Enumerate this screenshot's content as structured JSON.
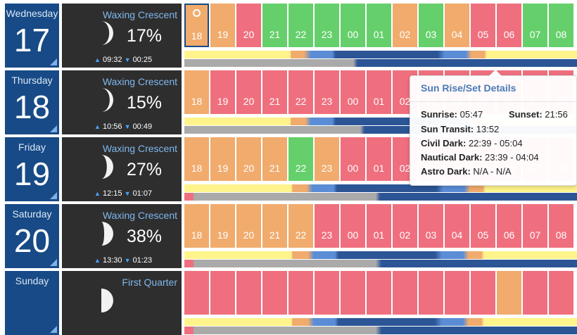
{
  "days": [
    {
      "weekday": "Wednesday",
      "date": "17",
      "moon": {
        "phase": "Waxing Crescent",
        "illumination": "17%",
        "rise": "09:32",
        "set": "00:25",
        "lit_fraction": 0.17
      },
      "hours": [
        {
          "label": "18",
          "color": "o",
          "current": true
        },
        {
          "label": "19",
          "color": "o"
        },
        {
          "label": "20",
          "color": "r"
        },
        {
          "label": "21",
          "color": "g"
        },
        {
          "label": "22",
          "color": "g"
        },
        {
          "label": "23",
          "color": "g"
        },
        {
          "label": "00",
          "color": "g"
        },
        {
          "label": "01",
          "color": "g"
        },
        {
          "label": "02",
          "color": "o"
        },
        {
          "label": "03",
          "color": "g"
        },
        {
          "label": "04",
          "color": "o"
        },
        {
          "label": "05",
          "color": "r"
        },
        {
          "label": "06",
          "color": "r"
        },
        {
          "label": "07",
          "color": "g"
        },
        {
          "label": "08",
          "color": "g"
        }
      ]
    },
    {
      "weekday": "Thursday",
      "date": "18",
      "moon": {
        "phase": "Waxing Crescent",
        "illumination": "15%",
        "rise": "10:56",
        "set": "00:49",
        "lit_fraction": 0.15
      },
      "hours": [
        {
          "label": "18",
          "color": "o"
        },
        {
          "label": "19",
          "color": "r"
        },
        {
          "label": "20",
          "color": "r"
        },
        {
          "label": "21",
          "color": "r"
        },
        {
          "label": "22",
          "color": "r"
        },
        {
          "label": "23",
          "color": "r"
        },
        {
          "label": "00",
          "color": "r"
        },
        {
          "label": "01",
          "color": "r"
        },
        {
          "label": "02",
          "color": "r"
        },
        {
          "label": "03",
          "color": "r"
        },
        {
          "label": "04",
          "color": "r"
        },
        {
          "label": "05",
          "color": "r"
        },
        {
          "label": "06",
          "color": "r"
        },
        {
          "label": "07",
          "color": "r"
        },
        {
          "label": "08",
          "color": "r"
        }
      ]
    },
    {
      "weekday": "Friday",
      "date": "19",
      "moon": {
        "phase": "Waxing Crescent",
        "illumination": "27%",
        "rise": "12:15",
        "set": "01:07",
        "lit_fraction": 0.27
      },
      "hours": [
        {
          "label": "18",
          "color": "o"
        },
        {
          "label": "19",
          "color": "o"
        },
        {
          "label": "20",
          "color": "o"
        },
        {
          "label": "21",
          "color": "o"
        },
        {
          "label": "22",
          "color": "g"
        },
        {
          "label": "23",
          "color": "o"
        },
        {
          "label": "00",
          "color": "r"
        },
        {
          "label": "01",
          "color": "r"
        },
        {
          "label": "02",
          "color": "r"
        },
        {
          "label": "03",
          "color": "r"
        },
        {
          "label": "04",
          "color": "r"
        },
        {
          "label": "05",
          "color": "r"
        },
        {
          "label": "06",
          "color": "r"
        },
        {
          "label": "07",
          "color": "r"
        },
        {
          "label": "08",
          "color": "r"
        }
      ]
    },
    {
      "weekday": "Saturday",
      "date": "20",
      "moon": {
        "phase": "Waxing Crescent",
        "illumination": "38%",
        "rise": "13:30",
        "set": "01:23",
        "lit_fraction": 0.38
      },
      "hours": [
        {
          "label": "18",
          "color": "o"
        },
        {
          "label": "19",
          "color": "o"
        },
        {
          "label": "20",
          "color": "o"
        },
        {
          "label": "21",
          "color": "o"
        },
        {
          "label": "22",
          "color": "o"
        },
        {
          "label": "23",
          "color": "r"
        },
        {
          "label": "00",
          "color": "r"
        },
        {
          "label": "01",
          "color": "r"
        },
        {
          "label": "02",
          "color": "r"
        },
        {
          "label": "03",
          "color": "r"
        },
        {
          "label": "04",
          "color": "r"
        },
        {
          "label": "05",
          "color": "r"
        },
        {
          "label": "06",
          "color": "r"
        },
        {
          "label": "07",
          "color": "r"
        },
        {
          "label": "08",
          "color": "r"
        }
      ]
    },
    {
      "weekday": "Sunday",
      "date": "",
      "moon": {
        "phase": "First Quarter",
        "illumination": "",
        "rise": "",
        "set": "",
        "lit_fraction": 0.5
      },
      "hours": [
        {
          "label": "",
          "color": "r"
        },
        {
          "label": "",
          "color": "r"
        },
        {
          "label": "",
          "color": "r"
        },
        {
          "label": "",
          "color": "r"
        },
        {
          "label": "",
          "color": "r"
        },
        {
          "label": "",
          "color": "r"
        },
        {
          "label": "",
          "color": "r"
        },
        {
          "label": "",
          "color": "r"
        },
        {
          "label": "",
          "color": "r"
        },
        {
          "label": "",
          "color": "r"
        },
        {
          "label": "",
          "color": "r"
        },
        {
          "label": "",
          "color": "r"
        },
        {
          "label": "",
          "color": "o"
        },
        {
          "label": "",
          "color": "r"
        },
        {
          "label": "",
          "color": "r"
        }
      ]
    }
  ],
  "tooltip": {
    "title": "Sun Rise/Set Details",
    "sunrise_label": "Sunrise:",
    "sunrise_value": "05:47",
    "sunset_label": "Sunset:",
    "sunset_value": "21:56",
    "transit_label": "Sun Transit:",
    "transit_value": "13:52",
    "civil_label": "Civil Dark:",
    "civil_value": "22:39 - 05:04",
    "nautical_label": "Nautical Dark:",
    "nautical_value": "23:39 - 04:04",
    "astro_label": "Astro Dark:",
    "astro_value": "N/A - N/A"
  },
  "colors": {
    "good": "#65d06b",
    "average": "#f0ab6d",
    "poor": "#ef6f7e",
    "daylight": "#fff48c",
    "dark": "#2c5596",
    "moon_up": "#aaaaaa",
    "day_panel": "#174a86",
    "moon_panel": "#2e2e2e"
  }
}
